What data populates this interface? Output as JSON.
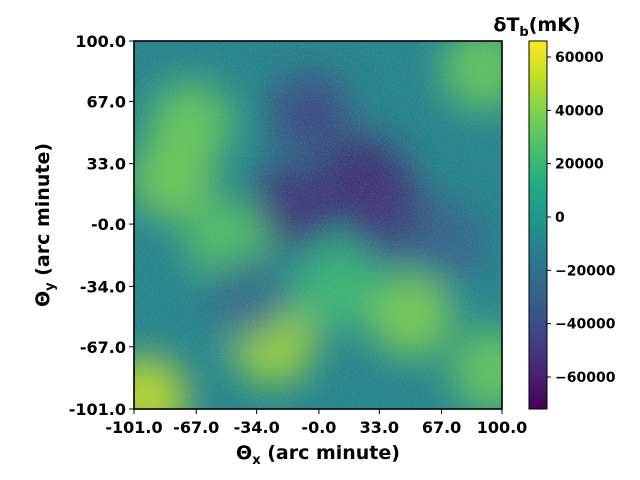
{
  "chart_data": {
    "type": "heatmap",
    "title": "",
    "xlabel": {
      "main": "Θ",
      "sub": "x",
      "rest": " (arc minute)"
    },
    "ylabel": {
      "main": "Θ",
      "sub": "y",
      "rest": " (arc minute)"
    },
    "xlim": [
      -101.0,
      100.0
    ],
    "ylim": [
      -101.0,
      100.0
    ],
    "x_ticks": [
      {
        "value": -101.0,
        "label": "-101.0"
      },
      {
        "value": -67.0,
        "label": "-67.0"
      },
      {
        "value": -34.0,
        "label": "-34.0"
      },
      {
        "value": -0.0,
        "label": "-0.0"
      },
      {
        "value": 33.0,
        "label": "33.0"
      },
      {
        "value": 67.0,
        "label": "67.0"
      },
      {
        "value": 100.0,
        "label": "100.0"
      }
    ],
    "y_ticks": [
      {
        "value": 100.0,
        "label": "100.0"
      },
      {
        "value": 67.0,
        "label": "67.0"
      },
      {
        "value": 33.0,
        "label": "33.0"
      },
      {
        "value": -0.0,
        "label": "-0.0"
      },
      {
        "value": -34.0,
        "label": "-34.0"
      },
      {
        "value": -67.0,
        "label": "-67.0"
      },
      {
        "value": -101.0,
        "label": "-101.0"
      }
    ],
    "colorbar": {
      "label": {
        "main": "δT",
        "sub": "b",
        "rest": "(mK)"
      },
      "colormap": "viridis",
      "range": [
        -72000,
        66000
      ],
      "ticks": [
        {
          "value": 60000,
          "label": "60000"
        },
        {
          "value": 40000,
          "label": "40000"
        },
        {
          "value": 20000,
          "label": "20000"
        },
        {
          "value": 0,
          "label": "0"
        },
        {
          "value": -20000,
          "label": "−20000"
        },
        {
          "value": -40000,
          "label": "−40000"
        },
        {
          "value": -60000,
          "label": "−60000"
        }
      ]
    },
    "grid": false,
    "features": [
      {
        "x": -15,
        "y": 10,
        "value": -55000
      },
      {
        "x": 25,
        "y": 25,
        "value": -60000
      },
      {
        "x": 40,
        "y": 5,
        "value": -52000
      },
      {
        "x": -5,
        "y": 60,
        "value": -45000
      },
      {
        "x": 70,
        "y": -10,
        "value": -30000
      },
      {
        "x": -80,
        "y": 25,
        "value": 38000
      },
      {
        "x": -70,
        "y": 55,
        "value": 35000
      },
      {
        "x": -25,
        "y": -65,
        "value": 48000
      },
      {
        "x": 50,
        "y": -50,
        "value": 40000
      },
      {
        "x": -95,
        "y": -95,
        "value": 55000
      },
      {
        "x": 90,
        "y": 85,
        "value": 35000
      },
      {
        "x": 95,
        "y": -80,
        "value": 35000
      },
      {
        "x": -50,
        "y": -10,
        "value": 30000
      },
      {
        "x": -40,
        "y": -40,
        "value": -25000
      },
      {
        "x": 10,
        "y": -35,
        "value": 22000
      }
    ]
  }
}
